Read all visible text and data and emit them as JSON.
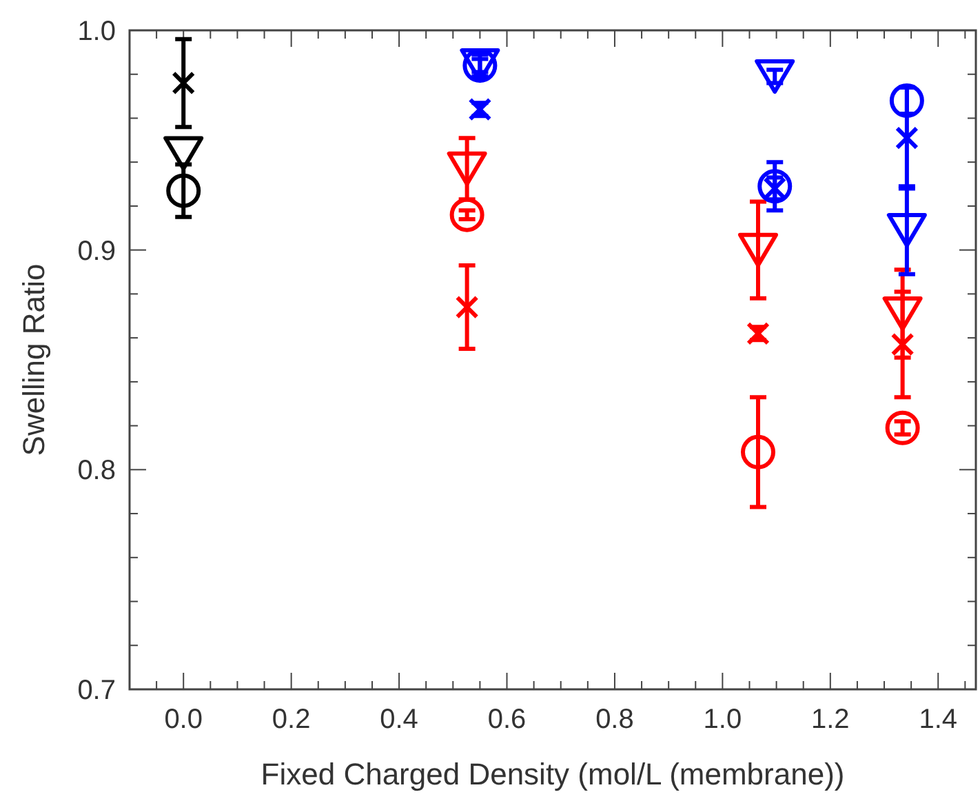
{
  "chart_data": {
    "type": "scatter",
    "xlabel": "Fixed Charged Density (mol/L (membrane))",
    "ylabel": "Swelling Ratio",
    "xlim": [
      -0.1,
      1.47
    ],
    "ylim": [
      0.7,
      1.0
    ],
    "xticks": [
      {
        "value": -0.05,
        "label": null
      },
      {
        "value": 0.0,
        "label": "0.0"
      },
      {
        "value": 0.05,
        "label": null
      },
      {
        "value": 0.1,
        "label": null
      },
      {
        "value": 0.15,
        "label": null
      },
      {
        "value": 0.2,
        "label": "0.2"
      },
      {
        "value": 0.25,
        "label": null
      },
      {
        "value": 0.3,
        "label": null
      },
      {
        "value": 0.35,
        "label": null
      },
      {
        "value": 0.4,
        "label": "0.4"
      },
      {
        "value": 0.45,
        "label": null
      },
      {
        "value": 0.5,
        "label": null
      },
      {
        "value": 0.55,
        "label": null
      },
      {
        "value": 0.6,
        "label": "0.6"
      },
      {
        "value": 0.65,
        "label": null
      },
      {
        "value": 0.7,
        "label": null
      },
      {
        "value": 0.75,
        "label": null
      },
      {
        "value": 0.8,
        "label": "0.8"
      },
      {
        "value": 0.85,
        "label": null
      },
      {
        "value": 0.9,
        "label": null
      },
      {
        "value": 0.95,
        "label": null
      },
      {
        "value": 1.0,
        "label": "1.0"
      },
      {
        "value": 1.05,
        "label": null
      },
      {
        "value": 1.1,
        "label": null
      },
      {
        "value": 1.15,
        "label": null
      },
      {
        "value": 1.2,
        "label": "1.2"
      },
      {
        "value": 1.25,
        "label": null
      },
      {
        "value": 1.3,
        "label": null
      },
      {
        "value": 1.35,
        "label": null
      },
      {
        "value": 1.4,
        "label": "1.4"
      },
      {
        "value": 1.45,
        "label": null
      }
    ],
    "yticks": [
      {
        "value": 0.7,
        "label": "0.7"
      },
      {
        "value": 0.72,
        "label": null
      },
      {
        "value": 0.74,
        "label": null
      },
      {
        "value": 0.76,
        "label": null
      },
      {
        "value": 0.78,
        "label": null
      },
      {
        "value": 0.8,
        "label": "0.8"
      },
      {
        "value": 0.82,
        "label": null
      },
      {
        "value": 0.84,
        "label": null
      },
      {
        "value": 0.86,
        "label": null
      },
      {
        "value": 0.88,
        "label": null
      },
      {
        "value": 0.9,
        "label": "0.9"
      },
      {
        "value": 0.92,
        "label": null
      },
      {
        "value": 0.94,
        "label": null
      },
      {
        "value": 0.96,
        "label": null
      },
      {
        "value": 0.98,
        "label": null
      },
      {
        "value": 1.0,
        "label": "1.0"
      }
    ],
    "grid": false,
    "series": [
      {
        "color": "#000000",
        "marker": "circle",
        "x": [
          0.0
        ],
        "values": [
          0.927
        ],
        "errors": [
          0.012
        ]
      },
      {
        "color": "#000000",
        "marker": "cross",
        "x": [
          0.0
        ],
        "values": [
          0.976
        ],
        "errors": [
          0.02
        ]
      },
      {
        "color": "#000000",
        "marker": "triangle",
        "x": [
          0.0
        ],
        "values": [
          0.944
        ],
        "errors": [
          null
        ]
      },
      {
        "color": "#ff0000",
        "marker": "circle",
        "x": [
          0.526,
          1.066,
          1.334
        ],
        "values": [
          0.916,
          0.808,
          0.819
        ],
        "errors": [
          0.002,
          0.025,
          0.003
        ]
      },
      {
        "color": "#ff0000",
        "marker": "cross",
        "x": [
          0.526,
          1.066,
          1.334
        ],
        "values": [
          0.874,
          0.862,
          0.857
        ],
        "errors": [
          0.019,
          0.003,
          0.024
        ]
      },
      {
        "color": "#ff0000",
        "marker": "triangle",
        "x": [
          0.526,
          1.066,
          1.334
        ],
        "values": [
          0.937,
          0.9,
          0.871
        ],
        "errors": [
          0.014,
          0.022,
          0.02
        ]
      },
      {
        "color": "#0000ff",
        "marker": "circle",
        "x": [
          0.55,
          1.097,
          1.342
        ],
        "values": [
          0.984,
          0.929,
          0.968
        ],
        "errors": [
          0.005,
          0.011,
          0.006
        ]
      },
      {
        "color": "#0000ff",
        "marker": "cross",
        "x": [
          0.55,
          1.097,
          1.342
        ],
        "values": [
          0.964,
          0.928,
          0.951
        ],
        "errors": [
          0.003,
          0.005,
          0.023
        ]
      },
      {
        "color": "#0000ff",
        "marker": "triangle",
        "x": [
          0.55,
          1.097,
          1.342
        ],
        "values": [
          0.984,
          0.979,
          0.909
        ],
        "errors": [
          0.003,
          0.003,
          0.02
        ]
      }
    ]
  }
}
